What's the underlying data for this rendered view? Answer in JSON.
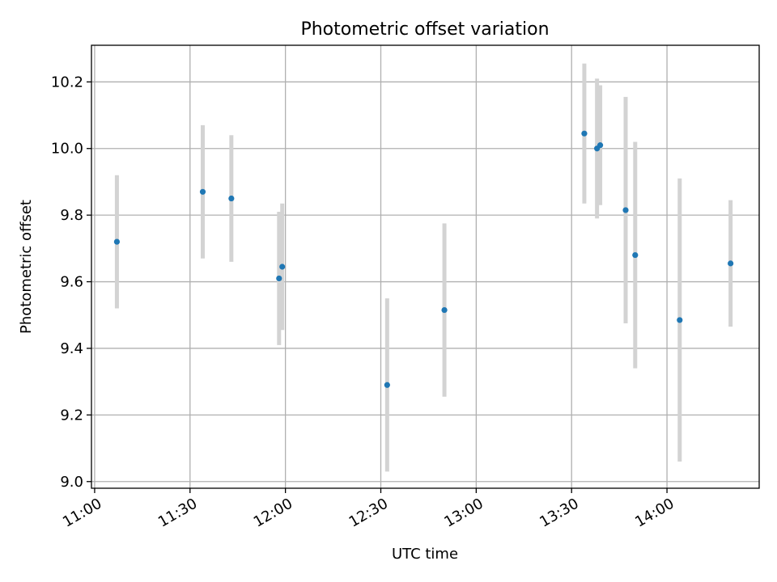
{
  "chart_data": {
    "type": "scatter",
    "title": "Photometric offset variation",
    "xlabel": "UTC time",
    "ylabel": "Photometric offset",
    "grid": true,
    "xlim": [
      "10:59",
      "14:29"
    ],
    "ylim": [
      8.98,
      10.31
    ],
    "x_ticks": [
      "11:00",
      "11:30",
      "12:00",
      "12:30",
      "13:00",
      "13:30",
      "14:00"
    ],
    "y_ticks": [
      "9.0",
      "9.2",
      "9.4",
      "9.6",
      "9.8",
      "10.0",
      "10.2"
    ],
    "colors": {
      "points": "#1f77b4",
      "errorbars": "#d3d3d3"
    },
    "points": [
      {
        "x": "11:07",
        "y": 9.72,
        "err": 0.2
      },
      {
        "x": "11:34",
        "y": 9.87,
        "err": 0.2
      },
      {
        "x": "11:43",
        "y": 9.85,
        "err": 0.19
      },
      {
        "x": "11:58",
        "y": 9.61,
        "err": 0.2
      },
      {
        "x": "11:59",
        "y": 9.645,
        "err": 0.19
      },
      {
        "x": "12:32",
        "y": 9.29,
        "err": 0.26
      },
      {
        "x": "12:50",
        "y": 9.515,
        "err": 0.26
      },
      {
        "x": "13:34",
        "y": 10.045,
        "err": 0.21
      },
      {
        "x": "13:38",
        "y": 10.0,
        "err": 0.21
      },
      {
        "x": "13:39",
        "y": 10.01,
        "err": 0.18
      },
      {
        "x": "13:47",
        "y": 9.815,
        "err": 0.34
      },
      {
        "x": "13:50",
        "y": 9.68,
        "err": 0.34
      },
      {
        "x": "14:04",
        "y": 9.485,
        "err": 0.425
      },
      {
        "x": "14:20",
        "y": 9.655,
        "err": 0.19
      }
    ]
  }
}
